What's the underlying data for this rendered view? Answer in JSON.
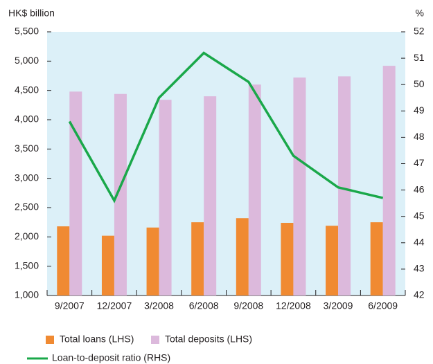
{
  "chart_data": {
    "type": "bar-line",
    "y_label": "HK$ billion",
    "y2_label": "%",
    "categories": [
      "9/2007",
      "12/2007",
      "3/2008",
      "6/2008",
      "9/2008",
      "12/2008",
      "3/2009",
      "6/2009"
    ],
    "series": [
      {
        "name": "Total loans (LHS)",
        "type": "bar",
        "color": "#f08a32",
        "values": [
          2180,
          2020,
          2160,
          2250,
          2320,
          2240,
          2190,
          2250
        ]
      },
      {
        "name": "Total deposits (LHS)",
        "type": "bar",
        "color": "#dcb9dc",
        "values": [
          4480,
          4440,
          4340,
          4400,
          4600,
          4720,
          4740,
          4920
        ]
      },
      {
        "name": "Loan-to-deposit ratio (RHS)",
        "type": "line",
        "axis": "y2",
        "color": "#1aa84a",
        "values": [
          48.6,
          45.6,
          49.5,
          51.2,
          50.1,
          47.3,
          46.1,
          45.7
        ]
      }
    ],
    "ylim": [
      1000,
      5500
    ],
    "yticks": [
      {
        "value": 1000,
        "label": "1,000"
      },
      {
        "value": 1500,
        "label": "1,500"
      },
      {
        "value": 2000,
        "label": "2,000"
      },
      {
        "value": 2500,
        "label": "2,500"
      },
      {
        "value": 3000,
        "label": "3,000"
      },
      {
        "value": 3500,
        "label": "3,500"
      },
      {
        "value": 4000,
        "label": "4,000"
      },
      {
        "value": 4500,
        "label": "4,500"
      },
      {
        "value": 5000,
        "label": "5,000"
      },
      {
        "value": 5500,
        "label": "5,500"
      }
    ],
    "y2lim": [
      42,
      52
    ],
    "y2ticks": [
      42,
      43,
      44,
      45,
      46,
      47,
      48,
      49,
      50,
      51,
      52
    ],
    "background": "#dcf0f8"
  }
}
